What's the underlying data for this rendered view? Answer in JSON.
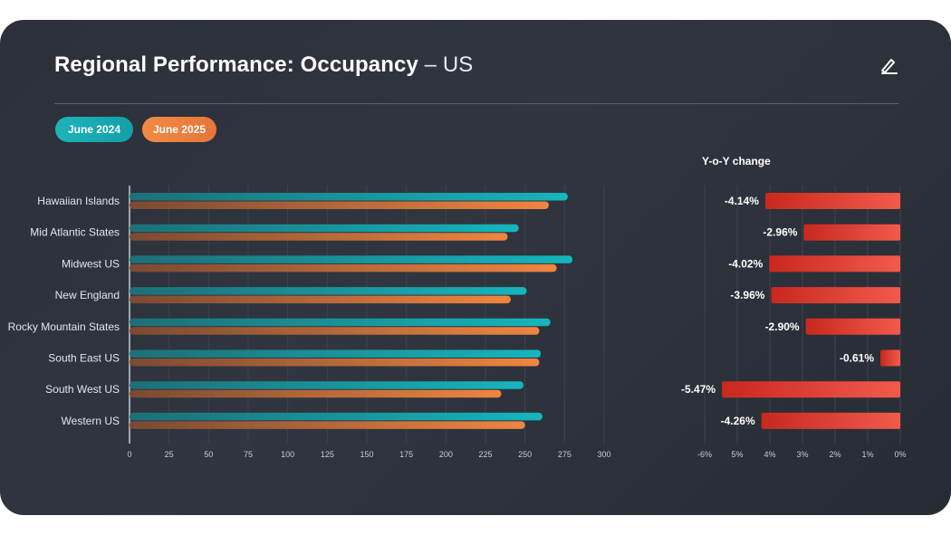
{
  "header": {
    "title": "Regional Performance: Occupancy",
    "subtitle": " – US"
  },
  "legend": [
    {
      "label": "June 2024",
      "color": "#17aab2"
    },
    {
      "label": "June 2025",
      "color": "#ea7d3e"
    }
  ],
  "icons": {
    "edit": "edit-pen-icon"
  },
  "chart_data": [
    {
      "type": "bar",
      "orientation": "horizontal",
      "categories": [
        "Hawaiian Islands",
        "Mid Atlantic States",
        "Midwest US",
        "New England",
        "Rocky Mountain States",
        "South East US",
        "South West US",
        "Western US"
      ],
      "series": [
        {
          "name": "June 2024",
          "color": "#17aab2",
          "values": [
            277,
            246,
            280,
            251,
            266,
            260,
            249,
            261
          ]
        },
        {
          "name": "June 2025",
          "color": "#ea7d3e",
          "values": [
            265,
            239,
            270,
            241,
            259,
            259,
            235,
            250
          ]
        }
      ],
      "xlim": [
        0,
        300
      ],
      "xticks": [
        "0",
        "25",
        "50",
        "75",
        "100",
        "125",
        "150",
        "175",
        "200",
        "225",
        "250",
        "275",
        "300"
      ],
      "grid": true
    },
    {
      "type": "bar",
      "orientation": "horizontal",
      "title": "Y-o-Y change",
      "categories": [
        "Hawaiian Islands",
        "Mid Atlantic States",
        "Midwest US",
        "New England",
        "Rocky Mountain States",
        "South East US",
        "South West US",
        "Western US"
      ],
      "values": [
        -4.14,
        -2.96,
        -4.02,
        -3.96,
        -2.9,
        -0.61,
        -5.47,
        -4.26
      ],
      "data_labels": [
        "-4.14%",
        "-2.96%",
        "-4.02%",
        "-3.96%",
        "-2.90%",
        "-0.61%",
        "-5.47%",
        "-4.26%"
      ],
      "color": "#e8382b",
      "xlim": [
        -6,
        0
      ],
      "xticks": [
        "-6%",
        "5%",
        "4%",
        "3%",
        "2%",
        "1%",
        "0%"
      ],
      "grid": true
    }
  ]
}
